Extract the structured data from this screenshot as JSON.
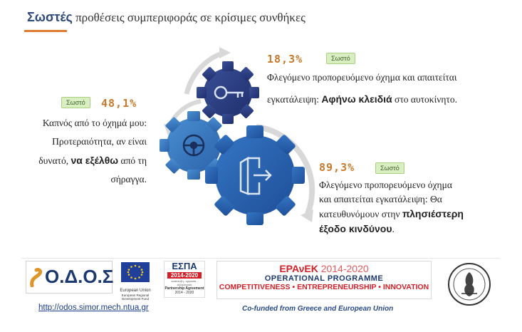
{
  "title": {
    "highlight": "Σωστές",
    "rest": "προθέσεις συμπεριφοράς σε κρίσιμες συνθήκες"
  },
  "items": {
    "top": {
      "percent": "18,3%",
      "badge": "Σωστό",
      "line1": "Φλεγόμενο προπορευόμενο όχημα και απαιτείται",
      "line2_pre": "εγκατάλειψη: ",
      "line2_bold": "Αφήνω κλειδιά",
      "line2_post": " στο αυτοκίνητο."
    },
    "left": {
      "percent": "48,1%",
      "badge": "Σωστό",
      "line1": "Καπνός από το όχημά μου:",
      "line2": "Προτεραιότητα, αν είναι",
      "line3_pre": "δυνατό, ",
      "line3_bold": "να εξέλθω",
      "line3_post": " από τη",
      "line4": "σήραγγα."
    },
    "right": {
      "percent": "89,3%",
      "badge": "Σωστό",
      "line1": "Φλεγόμενο προπορευόμενο όχημα",
      "line2": "και απαιτείται εγκατάλειψη: Θα",
      "line3_pre": "κατευθυνόμουν στην ",
      "line3_bold": "πλησιέστερη",
      "line4_bold": "έξοδο κινδύνου",
      "line4_post": "."
    }
  },
  "gear_icons": [
    "key-icon",
    "steering-wheel-icon",
    "exit-door-icon"
  ],
  "footer": {
    "odos_logo": "Ο.Δ.Ο.Σ",
    "eu_text": "European Union",
    "eu_sub": "European Regional Development Fund",
    "espa_logo": "ΕΣΠΑ",
    "espa_years": "2014-2020",
    "espa_sub1": "ανάπτυξη - εργασία - αλληλεγγύη",
    "espa_sub2": "Partnership Agreement",
    "espa_sub3": "2014 - 2020",
    "epanek_name": "ΕΡΑνΕΚ",
    "epanek_years": "2014-2020",
    "epanek_program": "OPERATIONAL PROGRAMME",
    "epanek_goals": "COMPETITIVENESS • ENTREPRENEURSHIP • INNOVATION",
    "link": "http://odos.simor.mech.ntua.gr",
    "cofunded": "Co-funded from Greece and European Union"
  },
  "colors": {
    "title": "#2d4a7a",
    "accent": "#e07a2e",
    "percent": "#c87a2a",
    "badge_bg": "#d9efc2",
    "gear_dark": "#253a80",
    "gear_mid": "#2c5fa8",
    "gear_light": "#3f86c9"
  }
}
